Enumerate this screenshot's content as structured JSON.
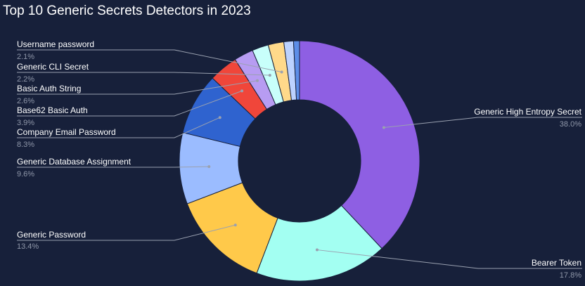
{
  "chart_data": {
    "type": "pie",
    "variant": "donut",
    "title": "Top 10 Generic Secrets Detectors in 2023",
    "slices": [
      {
        "label": "Generic High Entropy Secret",
        "value": 38.0,
        "value_label": "38.0%",
        "color": "#8e5fe3",
        "side": "right"
      },
      {
        "label": "Bearer Token",
        "value": 17.8,
        "value_label": "17.8%",
        "color": "#a3fff2",
        "side": "right"
      },
      {
        "label": "Generic Password",
        "value": 13.4,
        "value_label": "13.4%",
        "color": "#ffc94a",
        "side": "left"
      },
      {
        "label": "Generic Database Assignment",
        "value": 9.6,
        "value_label": "9.6%",
        "color": "#9bbcff",
        "side": "left"
      },
      {
        "label": "Company Email Password",
        "value": 8.3,
        "value_label": "8.3%",
        "color": "#2f63cf",
        "side": "left"
      },
      {
        "label": "Base62 Basic Auth",
        "value": 3.9,
        "value_label": "3.9%",
        "color": "#f0463a",
        "side": "left"
      },
      {
        "label": "Basic Auth String",
        "value": 2.6,
        "value_label": "2.6%",
        "color": "#b79cf2",
        "side": "left"
      },
      {
        "label": "Generic CLI Secret",
        "value": 2.2,
        "value_label": "2.2%",
        "color": "#c8fffb",
        "side": "left"
      },
      {
        "label": "Username password",
        "value": 2.1,
        "value_label": "2.1%",
        "color": "#ffd98a",
        "side": "left"
      },
      {
        "label": "",
        "value": 1.3,
        "value_label": "",
        "color": "#bcd2ff",
        "side": "none"
      },
      {
        "label": "",
        "value": 0.8,
        "value_label": "",
        "color": "#5d8ee8",
        "side": "none"
      }
    ],
    "legend": "none"
  }
}
